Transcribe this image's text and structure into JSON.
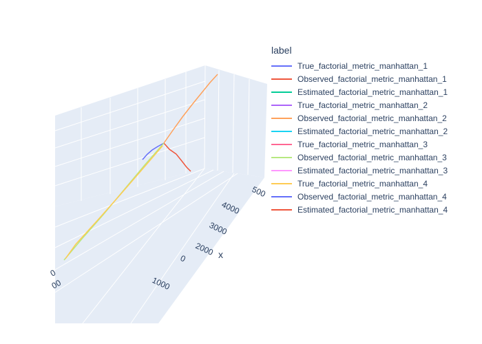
{
  "chart_data": {
    "type": "line",
    "scene": "3d",
    "legend": {
      "title": "label",
      "placement": "right"
    },
    "axes": {
      "x": {
        "title": "x",
        "ticks": [
          "0",
          "1000",
          "2000",
          "3000",
          "4000",
          "500"
        ]
      },
      "partial_ticks": [
        "0",
        "00"
      ]
    },
    "series": [
      {
        "name": "True_factorial_metric_manhattan_1",
        "color": "#636efa",
        "trace": [
          [
            207,
            232
          ],
          [
            214,
            224
          ],
          [
            221,
            218
          ],
          [
            229,
            213
          ],
          [
            238,
            208
          ]
        ]
      },
      {
        "name": "Observed_factorial_metric_manhattan_1",
        "color": "#EF553B",
        "trace": [
          [
            238,
            208
          ],
          [
            246,
            217
          ],
          [
            256,
            224
          ],
          [
            264,
            234
          ],
          [
            271,
            243
          ],
          [
            277,
            249
          ]
        ]
      },
      {
        "name": "Estimated_factorial_metric_manhattan_1",
        "color": "#00cc96",
        "trace": []
      },
      {
        "name": "True_factorial_metric_manhattan_2",
        "color": "#ab63fa",
        "trace": []
      },
      {
        "name": "Observed_factorial_metric_manhattan_2",
        "color": "#FFA15A",
        "trace": [
          [
            238,
            208
          ],
          [
            252,
            188
          ],
          [
            265,
            170
          ],
          [
            279,
            152
          ],
          [
            292,
            136
          ],
          [
            305,
            120
          ],
          [
            316,
            108
          ]
        ]
      },
      {
        "name": "Estimated_factorial_metric_manhattan_2",
        "color": "#19d3f3",
        "trace": []
      },
      {
        "name": "True_factorial_metric_manhattan_3",
        "color": "#FF6692",
        "trace": []
      },
      {
        "name": "Observed_factorial_metric_manhattan_3",
        "color": "#B6E880",
        "trace": [
          [
            238,
            208
          ],
          [
            210,
            240
          ],
          [
            180,
            276
          ],
          [
            150,
            312
          ],
          [
            120,
            346
          ],
          [
            93,
            378
          ]
        ]
      },
      {
        "name": "Estimated_factorial_metric_manhattan_3",
        "color": "#FF97FF",
        "trace": []
      },
      {
        "name": "True_factorial_metric_manhattan_4",
        "color": "#FECB52",
        "trace": [
          [
            236,
            212
          ],
          [
            205,
            248
          ],
          [
            172,
            286
          ],
          [
            140,
            322
          ],
          [
            110,
            355
          ],
          [
            95,
            376
          ]
        ]
      },
      {
        "name": "Observed_factorial_metric_manhattan_4",
        "color": "#636efa",
        "trace": []
      },
      {
        "name": "Estimated_factorial_metric_manhattan_4",
        "color": "#EF553B",
        "trace": []
      }
    ]
  }
}
